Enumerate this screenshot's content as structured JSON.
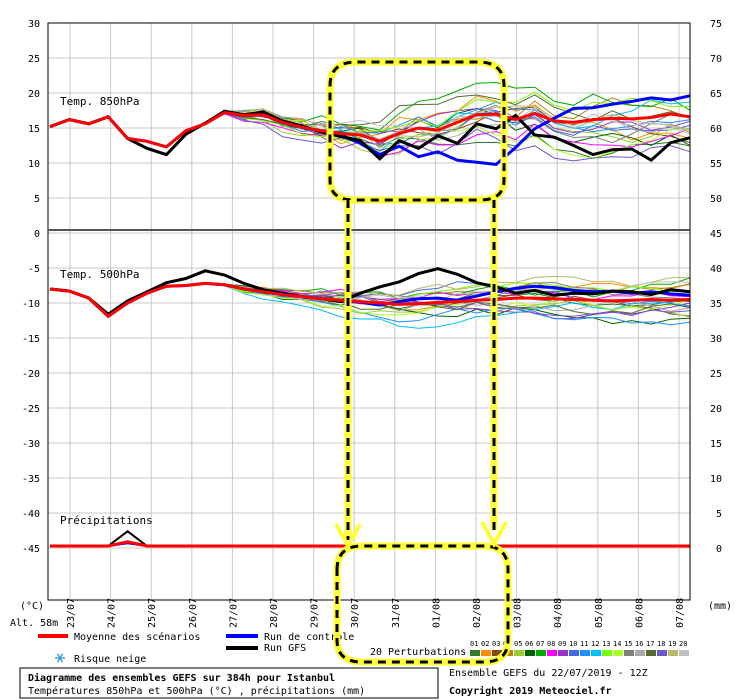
{
  "chart_data": {
    "type": "line",
    "title": "Diagramme des ensembles GEFS sur 384h pour Istanbul",
    "subtitle": "Températures 850hPa et 500hPa (°C) , précipitations (mm)",
    "altitude": "Alt. 58m",
    "left_unit": "(°C)",
    "right_unit": "(mm)",
    "run_label": "Ensemble GEFS du 22/07/2019 - 12Z",
    "copyright": "Copyright 2019 Meteociel.fr",
    "perturbations_label": "20 Perturbations",
    "perturbation_ids": [
      "01",
      "02",
      "03",
      "04",
      "05",
      "06",
      "07",
      "08",
      "09",
      "10",
      "11",
      "12",
      "13",
      "14",
      "15",
      "16",
      "17",
      "18",
      "19",
      "20"
    ],
    "perturbation_colors": [
      "#2e7d32",
      "#ff8c00",
      "#8b4513",
      "#b8860b",
      "#9acd32",
      "#006400",
      "#00aa00",
      "#ff00ff",
      "#9932cc",
      "#4169e1",
      "#1e90ff",
      "#00bfff",
      "#7cfc00",
      "#adff2f",
      "#808080",
      "#a9a9a9",
      "#556b2f",
      "#6a5acd",
      "#bdb76b",
      "#c0c0c0"
    ],
    "panels": [
      {
        "label": "Temp. 850hPa"
      },
      {
        "label": "Temp. 500hPa"
      },
      {
        "label": "Précipitations"
      }
    ],
    "x": [
      "23/07",
      "24/07",
      "25/07",
      "26/07",
      "27/07",
      "28/07",
      "29/07",
      "30/07",
      "31/07",
      "01/08",
      "02/08",
      "03/08",
      "04/08",
      "05/08",
      "06/08",
      "07/08"
    ],
    "left_ticks": [
      30,
      25,
      20,
      15,
      10,
      5,
      0,
      -5,
      -10,
      -15,
      -20,
      -25,
      -30,
      -35,
      -40,
      -45
    ],
    "right_ticks": [
      75,
      70,
      65,
      60,
      55,
      50,
      45,
      40,
      35,
      30,
      25,
      20,
      15,
      10,
      5,
      0
    ],
    "series": [
      {
        "name": "Moyenne des scénarios",
        "color": "#ff0000",
        "t850": [
          15.2,
          16.2,
          15.6,
          16.6,
          13.5,
          13.1,
          12.3,
          14.6,
          15.6,
          17.2,
          16.8,
          16.9,
          15.8,
          15.1,
          14.6,
          14.2,
          14.0,
          13.1,
          14.2,
          15.0,
          14.7,
          15.8,
          16.9,
          17.0,
          16.2,
          17.1,
          16.0,
          15.8,
          16.2,
          16.4,
          16.3,
          16.5,
          17.0,
          16.6
        ],
        "t500": [
          -8.0,
          -8.3,
          -9.3,
          -11.9,
          -10.0,
          -8.6,
          -7.6,
          -7.5,
          -7.2,
          -7.4,
          -8.0,
          -8.4,
          -8.8,
          -9.1,
          -9.4,
          -9.6,
          -9.8,
          -10.0,
          -10.2,
          -10.1,
          -9.9,
          -9.8,
          -9.6,
          -9.5,
          -9.3,
          -9.3,
          -9.4,
          -9.5,
          -9.6,
          -9.7,
          -9.6,
          -9.5,
          -9.6,
          -9.5
        ],
        "precip": [
          0,
          0,
          0,
          0,
          0.6,
          0,
          0,
          0,
          0,
          0,
          0,
          0,
          0,
          0,
          0,
          0,
          0,
          0,
          0,
          0,
          0,
          0,
          0,
          0,
          0,
          0,
          0,
          0,
          0,
          0,
          0,
          0,
          0,
          0
        ]
      },
      {
        "name": "Run de controle",
        "color": "#0000ff",
        "t850": [
          15.2,
          16.2,
          15.6,
          16.6,
          13.5,
          13.1,
          12.3,
          14.6,
          15.6,
          17.2,
          16.8,
          16.9,
          15.8,
          15.1,
          14.6,
          14.0,
          12.8,
          11.2,
          12.4,
          10.9,
          11.6,
          10.4,
          10.1,
          9.8,
          12.2,
          14.9,
          16.4,
          17.8,
          17.9,
          18.4,
          18.8,
          19.3,
          19.0,
          19.6
        ],
        "t500": [
          -8.0,
          -8.3,
          -9.3,
          -11.9,
          -10.0,
          -8.6,
          -7.6,
          -7.5,
          -7.2,
          -7.4,
          -8.0,
          -8.4,
          -8.8,
          -9.1,
          -9.4,
          -9.7,
          -9.9,
          -10.3,
          -9.8,
          -9.4,
          -9.3,
          -9.6,
          -9.0,
          -8.4,
          -7.9,
          -7.6,
          -7.8,
          -8.2,
          -8.4,
          -8.3,
          -8.6,
          -8.4,
          -8.7,
          -8.9
        ],
        "precip": [
          0,
          0,
          0,
          0,
          0.4,
          0,
          0,
          0,
          0,
          0,
          0,
          0,
          0,
          0,
          0,
          0,
          0,
          0,
          0,
          0,
          0,
          0,
          0,
          0,
          0,
          0,
          0,
          0,
          0,
          0,
          0,
          0,
          0,
          0
        ]
      },
      {
        "name": "Run GFS",
        "color": "#000000",
        "t850": [
          15.2,
          16.2,
          15.6,
          16.6,
          13.5,
          12.1,
          11.2,
          14.1,
          15.7,
          17.4,
          16.9,
          17.3,
          16.0,
          15.3,
          14.4,
          13.8,
          13.2,
          10.6,
          13.2,
          12.1,
          13.9,
          12.8,
          15.6,
          14.9,
          16.8,
          14.0,
          13.7,
          12.5,
          11.2,
          11.9,
          12.0,
          10.4,
          12.9,
          13.6
        ],
        "t500": [
          -8.0,
          -8.3,
          -9.3,
          -11.6,
          -9.7,
          -8.4,
          -7.1,
          -6.5,
          -5.4,
          -6.0,
          -7.2,
          -8.1,
          -8.6,
          -9.1,
          -9.4,
          -9.8,
          -8.6,
          -7.7,
          -7.0,
          -5.8,
          -5.1,
          -5.9,
          -7.1,
          -7.7,
          -8.6,
          -8.2,
          -8.9,
          -8.6,
          -8.7,
          -8.3,
          -8.4,
          -8.8,
          -8.1,
          -8.4
        ],
        "precip": [
          0,
          0,
          0,
          0,
          2.1,
          0,
          0,
          0,
          0,
          0,
          0,
          0,
          0,
          0,
          0,
          0,
          0,
          0,
          0,
          0,
          0,
          0,
          0,
          0,
          0,
          0,
          0,
          0,
          0,
          0,
          0,
          0,
          0,
          0
        ]
      }
    ],
    "legend": [
      {
        "label": "Moyenne des scénarios",
        "color": "#ff0000"
      },
      {
        "label": "Run de controle",
        "color": "#0000ff"
      },
      {
        "label": "Run GFS",
        "color": "#000000"
      },
      {
        "label": "Risque neige",
        "color": "#3aa0e0"
      }
    ]
  }
}
